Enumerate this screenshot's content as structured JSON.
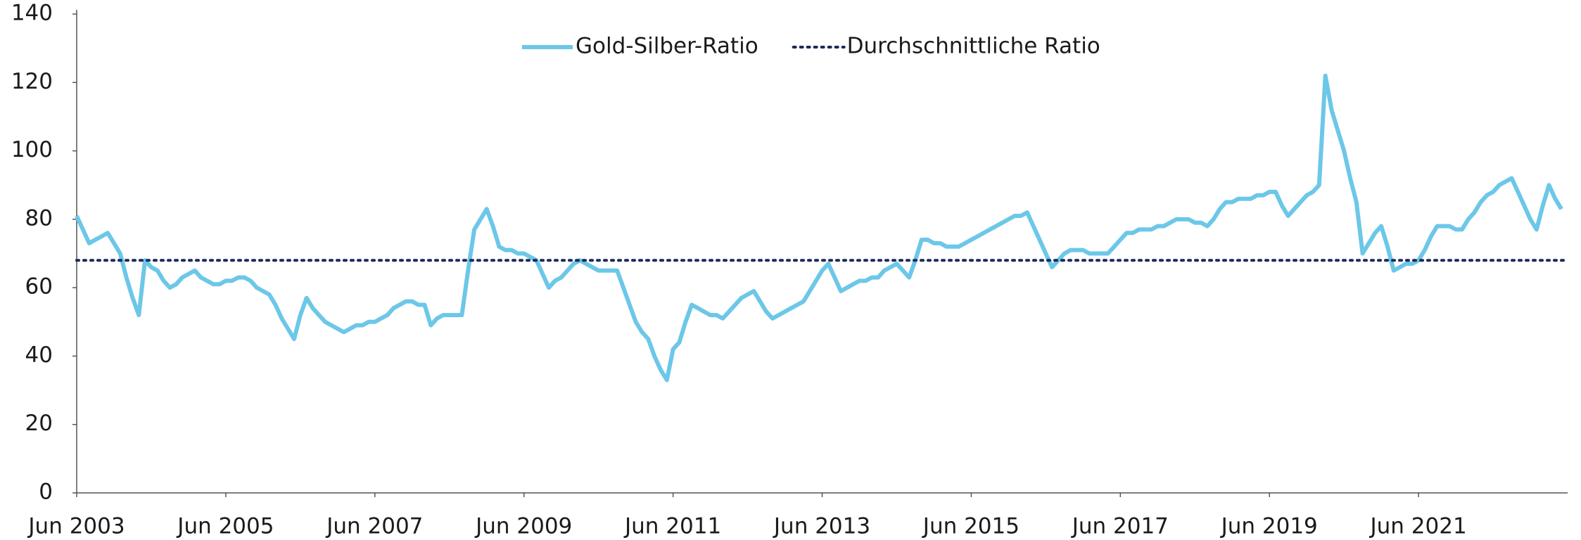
{
  "chart_data": {
    "type": "line",
    "x": [
      "2003-06",
      "2003-07",
      "2003-08",
      "2003-09",
      "2003-10",
      "2003-11",
      "2003-12",
      "2004-01",
      "2004-02",
      "2004-03",
      "2004-04",
      "2004-05",
      "2004-06",
      "2004-07",
      "2004-08",
      "2004-09",
      "2004-10",
      "2004-11",
      "2004-12",
      "2005-01",
      "2005-02",
      "2005-03",
      "2005-04",
      "2005-05",
      "2005-06",
      "2005-07",
      "2005-08",
      "2005-09",
      "2005-10",
      "2005-11",
      "2005-12",
      "2006-01",
      "2006-02",
      "2006-03",
      "2006-04",
      "2006-05",
      "2006-06",
      "2006-07",
      "2006-08",
      "2006-09",
      "2006-10",
      "2006-11",
      "2006-12",
      "2007-01",
      "2007-02",
      "2007-03",
      "2007-04",
      "2007-05",
      "2007-06",
      "2007-07",
      "2007-08",
      "2007-09",
      "2007-10",
      "2007-11",
      "2007-12",
      "2008-01",
      "2008-02",
      "2008-03",
      "2008-04",
      "2008-05",
      "2008-06",
      "2008-07",
      "2008-08",
      "2008-09",
      "2008-10",
      "2008-11",
      "2008-12",
      "2009-01",
      "2009-02",
      "2009-03",
      "2009-04",
      "2009-05",
      "2009-06",
      "2009-07",
      "2009-08",
      "2009-09",
      "2009-10",
      "2009-11",
      "2009-12",
      "2010-01",
      "2010-02",
      "2010-03",
      "2010-04",
      "2010-05",
      "2010-06",
      "2010-07",
      "2010-08",
      "2010-09",
      "2010-10",
      "2010-11",
      "2010-12",
      "2011-01",
      "2011-02",
      "2011-03",
      "2011-04",
      "2011-05",
      "2011-06",
      "2011-07",
      "2011-08",
      "2011-09",
      "2011-10",
      "2011-11",
      "2011-12",
      "2012-01",
      "2012-02",
      "2012-03",
      "2012-04",
      "2012-05",
      "2012-06",
      "2012-07",
      "2012-08",
      "2012-09",
      "2012-10",
      "2012-11",
      "2012-12",
      "2013-01",
      "2013-02",
      "2013-03",
      "2013-04",
      "2013-05",
      "2013-06",
      "2013-07",
      "2013-08",
      "2013-09",
      "2013-10",
      "2013-11",
      "2013-12",
      "2014-01",
      "2014-02",
      "2014-03",
      "2014-04",
      "2014-05",
      "2014-06",
      "2014-07",
      "2014-08",
      "2014-09",
      "2014-10",
      "2014-11",
      "2014-12",
      "2015-01",
      "2015-02",
      "2015-03",
      "2015-04",
      "2015-05",
      "2015-06",
      "2015-07",
      "2015-08",
      "2015-09",
      "2015-10",
      "2015-11",
      "2015-12",
      "2016-01",
      "2016-02",
      "2016-03",
      "2016-04",
      "2016-05",
      "2016-06",
      "2016-07",
      "2016-08",
      "2016-09",
      "2016-10",
      "2016-11",
      "2016-12",
      "2017-01",
      "2017-02",
      "2017-03",
      "2017-04",
      "2017-05",
      "2017-06",
      "2017-07",
      "2017-08",
      "2017-09",
      "2017-10",
      "2017-11",
      "2017-12",
      "2018-01",
      "2018-02",
      "2018-03",
      "2018-04",
      "2018-05",
      "2018-06",
      "2018-07",
      "2018-08",
      "2018-09",
      "2018-10",
      "2018-11",
      "2018-12",
      "2019-01",
      "2019-02",
      "2019-03",
      "2019-04",
      "2019-05",
      "2019-06",
      "2019-07",
      "2019-08",
      "2019-09",
      "2019-10",
      "2019-11",
      "2019-12",
      "2020-01",
      "2020-02",
      "2020-03",
      "2020-04",
      "2020-05",
      "2020-06",
      "2020-07",
      "2020-08",
      "2020-09",
      "2020-10",
      "2020-11",
      "2020-12",
      "2021-01",
      "2021-02",
      "2021-03",
      "2021-04",
      "2021-05",
      "2021-06",
      "2021-07",
      "2021-08",
      "2021-09",
      "2021-10",
      "2021-11",
      "2021-12",
      "2022-01",
      "2022-02",
      "2022-03",
      "2022-04",
      "2022-05",
      "2022-06",
      "2022-07",
      "2022-08",
      "2022-09",
      "2022-10",
      "2022-11",
      "2022-12",
      "2023-01",
      "2023-02",
      "2023-03",
      "2023-04",
      "2023-05"
    ],
    "series": [
      {
        "name": "Gold-Silber-Ratio",
        "color": "#6cc7e8",
        "values": [
          81,
          77,
          73,
          74,
          75,
          76,
          73,
          70,
          63,
          57,
          52,
          68,
          66,
          65,
          62,
          60,
          61,
          63,
          64,
          65,
          63,
          62,
          61,
          61,
          62,
          62,
          63,
          63,
          62,
          60,
          59,
          58,
          55,
          51,
          48,
          45,
          52,
          57,
          54,
          52,
          50,
          49,
          48,
          47,
          48,
          49,
          49,
          50,
          50,
          51,
          52,
          54,
          55,
          56,
          56,
          55,
          55,
          49,
          51,
          52,
          52,
          52,
          52,
          65,
          77,
          80,
          83,
          78,
          72,
          71,
          71,
          70,
          70,
          69,
          68,
          64,
          60,
          62,
          63,
          65,
          67,
          68,
          67,
          66,
          65,
          65,
          65,
          65,
          60,
          55,
          50,
          47,
          45,
          40,
          36,
          33,
          42,
          44,
          50,
          55,
          54,
          53,
          52,
          52,
          51,
          53,
          55,
          57,
          58,
          59,
          56,
          53,
          51,
          52,
          53,
          54,
          55,
          56,
          59,
          62,
          65,
          67,
          63,
          59,
          60,
          61,
          62,
          62,
          63,
          63,
          65,
          66,
          67,
          65,
          63,
          68,
          74,
          74,
          73,
          73,
          72,
          72,
          72,
          73,
          74,
          75,
          76,
          77,
          78,
          79,
          80,
          81,
          81,
          82,
          78,
          74,
          70,
          66,
          68,
          70,
          71,
          71,
          71,
          70,
          70,
          70,
          70,
          72,
          74,
          76,
          76,
          77,
          77,
          77,
          78,
          78,
          79,
          80,
          80,
          80,
          79,
          79,
          78,
          80,
          83,
          85,
          85,
          86,
          86,
          86,
          87,
          87,
          88,
          88,
          84,
          81,
          83,
          85,
          87,
          88,
          90,
          122,
          112,
          106,
          100,
          92,
          85,
          70,
          73,
          76,
          78,
          72,
          65,
          66,
          67,
          67,
          68,
          71,
          75,
          78,
          78,
          78,
          77,
          77,
          80,
          82,
          85,
          87,
          88,
          90,
          91,
          92,
          88,
          84,
          80,
          77,
          84,
          90,
          86,
          83
        ]
      },
      {
        "name": "Durchschnittliche Ratio",
        "color": "#1b2a5c",
        "value": 68,
        "dash": "dotted"
      }
    ],
    "xticks": [
      {
        "value": "2003-06",
        "label": "Jun 2003"
      },
      {
        "value": "2005-06",
        "label": "Jun 2005"
      },
      {
        "value": "2007-06",
        "label": "Jun 2007"
      },
      {
        "value": "2009-06",
        "label": "Jun 2009"
      },
      {
        "value": "2011-06",
        "label": "Jun 2011"
      },
      {
        "value": "2013-06",
        "label": "Jun 2013"
      },
      {
        "value": "2015-06",
        "label": "Jun 2015"
      },
      {
        "value": "2017-06",
        "label": "Jun 2017"
      },
      {
        "value": "2019-06",
        "label": "Jun 2019"
      },
      {
        "value": "2021-06",
        "label": "Jun 2021"
      }
    ],
    "ylim": [
      0,
      140
    ],
    "yticks": [
      0,
      20,
      40,
      60,
      80,
      100,
      120,
      140
    ],
    "grid": false,
    "legend": "top"
  }
}
